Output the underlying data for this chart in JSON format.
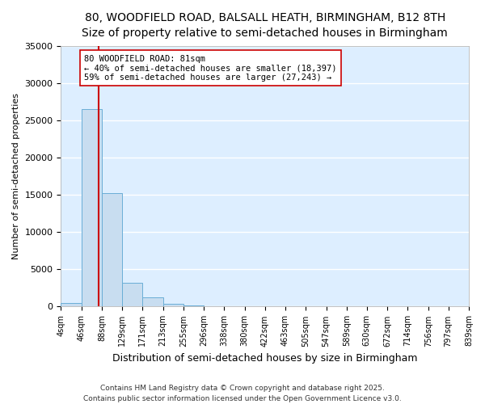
{
  "title1": "80, WOODFIELD ROAD, BALSALL HEATH, BIRMINGHAM, B12 8TH",
  "title2": "Size of property relative to semi-detached houses in Birmingham",
  "xlabel": "Distribution of semi-detached houses by size in Birmingham",
  "ylabel": "Number of semi-detached properties",
  "bin_edges": [
    4,
    46,
    88,
    129,
    171,
    213,
    255,
    296,
    338,
    380,
    422,
    463,
    505,
    547,
    589,
    630,
    672,
    714,
    756,
    797,
    839
  ],
  "bar_heights": [
    430,
    26500,
    15200,
    3200,
    1250,
    420,
    180,
    90,
    60,
    40,
    25,
    18,
    12,
    8,
    6,
    4,
    3,
    2,
    2,
    1
  ],
  "bar_color": "#c8ddf0",
  "bar_edge_color": "#6aaed6",
  "property_size": 81,
  "annotation_text": "80 WOODFIELD ROAD: 81sqm\n← 40% of semi-detached houses are smaller (18,397)\n59% of semi-detached houses are larger (27,243) →",
  "red_line_color": "#cc0000",
  "annotation_box_color": "#ffffff",
  "annotation_box_edge": "#cc0000",
  "footer_text": "Contains HM Land Registry data © Crown copyright and database right 2025.\nContains public sector information licensed under the Open Government Licence v3.0.",
  "ylim": [
    0,
    35000
  ],
  "yticks": [
    0,
    5000,
    10000,
    15000,
    20000,
    25000,
    30000,
    35000
  ],
  "background_color": "#ddeeff",
  "fig_background": "#ffffff",
  "grid_color": "#ffffff",
  "title_fontsize": 10,
  "subtitle_fontsize": 9
}
